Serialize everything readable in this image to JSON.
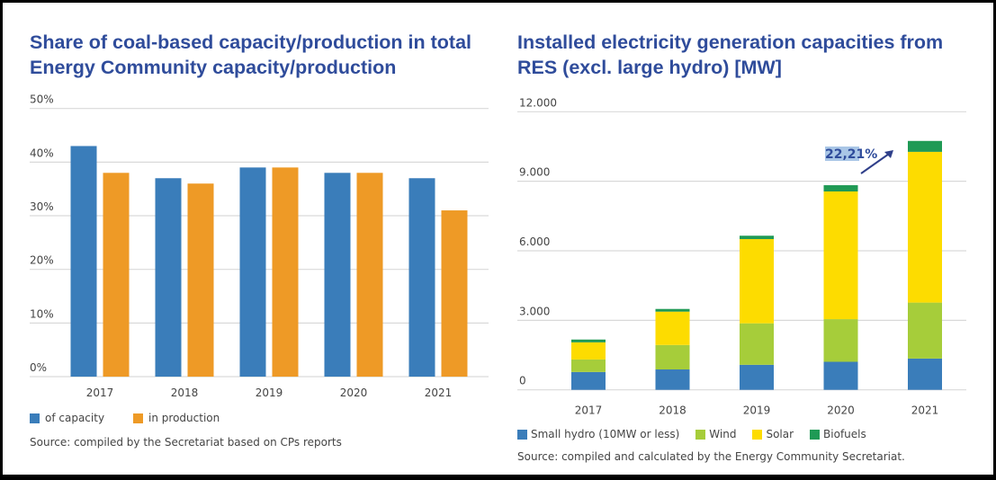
{
  "chart_data": [
    {
      "type": "bar",
      "title": "Share of coal-based capacity/production in total Energy Community capacity/production",
      "categories": [
        "2017",
        "2018",
        "2019",
        "2020",
        "2021"
      ],
      "series": [
        {
          "name": "of capacity",
          "color": "#3a7dba",
          "values": [
            43,
            37,
            39,
            38,
            37
          ]
        },
        {
          "name": "in production",
          "color": "#ee9a26",
          "values": [
            38,
            36,
            39,
            38,
            31
          ]
        }
      ],
      "ylim": [
        0,
        50
      ],
      "yticks": [
        "0%",
        "10%",
        "20%",
        "30%",
        "40%",
        "50%"
      ],
      "grid": true,
      "legend": "bottom-left",
      "source": "Source: compiled by the Secretariat based on CPs reports"
    },
    {
      "type": "bar",
      "stacked": true,
      "title": "Installed electricity generation capacities from RES (excl. large hydro) [MW]",
      "categories": [
        "2017",
        "2018",
        "2019",
        "2020",
        "2021"
      ],
      "series": [
        {
          "name": "Small hydro (10MW or less)",
          "color": "#3a7dba",
          "values": [
            770,
            880,
            1080,
            1210,
            1350
          ]
        },
        {
          "name": "Wind",
          "color": "#a6cd3a",
          "values": [
            540,
            1055,
            1790,
            1840,
            2415
          ]
        },
        {
          "name": "Solar",
          "color": "#fddc00",
          "values": [
            740,
            1440,
            3635,
            5510,
            6505
          ]
        },
        {
          "name": "Biofuels",
          "color": "#1f9a55",
          "values": [
            120,
            115,
            145,
            270,
            470
          ]
        }
      ],
      "ylim": [
        0,
        12000
      ],
      "yticks": [
        "0",
        "3.000",
        "6.000",
        "9.000",
        "12.000"
      ],
      "grid": true,
      "legend": "bottom-left",
      "annotation": "22,21%",
      "source": "Source: compiled and calculated by the Energy Community Secretariat."
    }
  ]
}
